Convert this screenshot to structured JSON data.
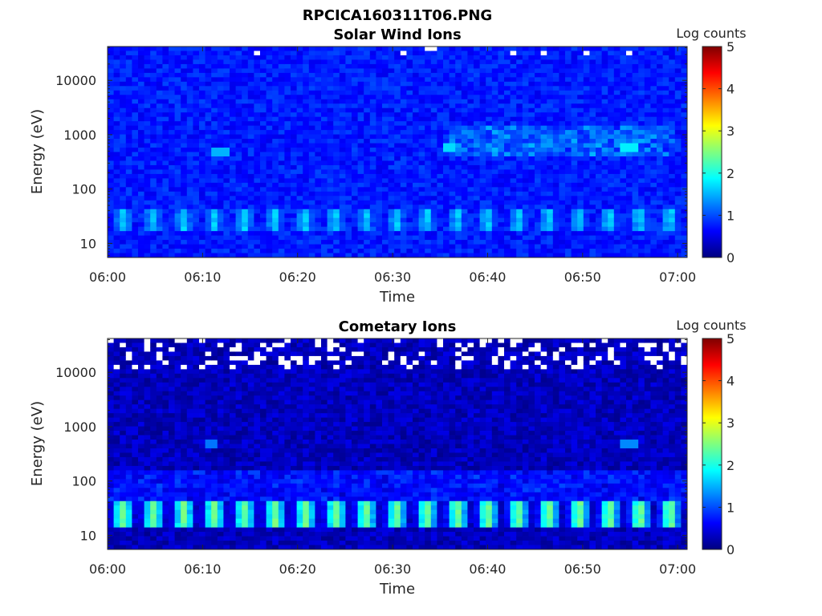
{
  "figure": {
    "filename_title": "RPCICA160311T06.PNG"
  },
  "colormap": {
    "name": "jet",
    "stops": [
      "#00007f",
      "#0000ff",
      "#007fff",
      "#00ffff",
      "#7fff7f",
      "#ffff00",
      "#ff7f00",
      "#ff0000",
      "#7f0000"
    ],
    "missing_color": "#ffffff"
  },
  "chart_data": [
    {
      "type": "heatmap",
      "title": "Solar Wind Ions",
      "xlabel": "Time",
      "ylabel": "Energy (eV)",
      "x_ticks": [
        "06:00",
        "06:10",
        "06:20",
        "06:30",
        "06:40",
        "06:50",
        "07:00"
      ],
      "x_range": [
        "06:00",
        "07:01"
      ],
      "y_scale": "log",
      "y_ticks": [
        "10",
        "100",
        "1000",
        "10000"
      ],
      "y_range": [
        5.5,
        42000
      ],
      "colorbar": {
        "label": "Log counts",
        "ticks": [
          "0",
          "1",
          "2",
          "3",
          "4",
          "5"
        ],
        "range": [
          0,
          5
        ]
      },
      "background_log_counts": 0.75,
      "bands": [
        {
          "energy_eV": [
            17,
            40
          ],
          "log_counts_peak": 1.6,
          "periodic_minutes": 3.2
        },
        {
          "energy_eV": [
            400,
            1500
          ],
          "time_range": [
            "06:36",
            "07:00"
          ],
          "log_counts_peak": 1.4
        }
      ],
      "hotspots": [
        {
          "time": "06:12",
          "energy_eV": 450,
          "log_counts": 1.5
        },
        {
          "time": "06:36",
          "energy_eV": 550,
          "log_counts": 1.7
        },
        {
          "time": "06:55",
          "energy_eV": 550,
          "log_counts": 1.8
        }
      ]
    },
    {
      "type": "heatmap",
      "title": "Cometary Ions",
      "xlabel": "Time",
      "ylabel": "Energy (eV)",
      "x_ticks": [
        "06:00",
        "06:10",
        "06:20",
        "06:30",
        "06:40",
        "06:50",
        "07:00"
      ],
      "x_range": [
        "06:00",
        "07:01"
      ],
      "y_scale": "log",
      "y_ticks": [
        "10",
        "100",
        "1000",
        "10000"
      ],
      "y_range": [
        5.5,
        42000
      ],
      "colorbar": {
        "label": "Log counts",
        "ticks": [
          "0",
          "1",
          "2",
          "3",
          "4",
          "5"
        ],
        "range": [
          0,
          5
        ]
      },
      "background_log_counts": 0.3,
      "bands": [
        {
          "energy_eV": [
            15,
            40
          ],
          "log_counts_peak": 2.4,
          "periodic_minutes": 3.2
        },
        {
          "energy_eV": [
            40,
            150
          ],
          "log_counts_peak": 0.9
        }
      ],
      "missing_data_energy_eV": [
        12000,
        42000
      ],
      "hotspots": [
        {
          "time": "06:11",
          "energy_eV": 450,
          "log_counts": 1.2
        },
        {
          "time": "06:55",
          "energy_eV": 450,
          "log_counts": 1.3
        }
      ]
    }
  ]
}
